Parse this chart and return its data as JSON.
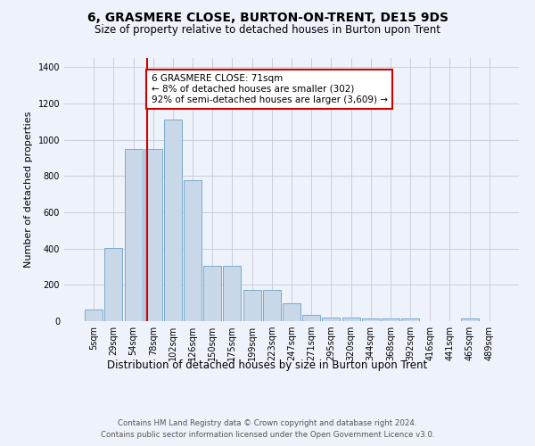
{
  "title": "6, GRASMERE CLOSE, BURTON-ON-TRENT, DE15 9DS",
  "subtitle": "Size of property relative to detached houses in Burton upon Trent",
  "xlabel": "Distribution of detached houses by size in Burton upon Trent",
  "ylabel": "Number of detached properties",
  "bar_labels": [
    "5sqm",
    "29sqm",
    "54sqm",
    "78sqm",
    "102sqm",
    "126sqm",
    "150sqm",
    "175sqm",
    "199sqm",
    "223sqm",
    "247sqm",
    "271sqm",
    "295sqm",
    "320sqm",
    "344sqm",
    "368sqm",
    "392sqm",
    "416sqm",
    "441sqm",
    "465sqm",
    "489sqm"
  ],
  "bar_values": [
    65,
    405,
    950,
    950,
    1110,
    775,
    305,
    305,
    170,
    170,
    100,
    35,
    20,
    20,
    15,
    15,
    13,
    0,
    0,
    13,
    0
  ],
  "bar_color": "#c8d8e8",
  "bar_edge_color": "#7aaacc",
  "grid_color": "#ccccdd",
  "background_color": "#eef2fa",
  "vline_color": "#cc0000",
  "annotation_text": "6 GRASMERE CLOSE: 71sqm\n← 8% of detached houses are smaller (302)\n92% of semi-detached houses are larger (3,609) →",
  "annotation_box_color": "#ffffff",
  "annotation_border_color": "#cc0000",
  "ylim": [
    0,
    1450
  ],
  "yticks": [
    0,
    200,
    400,
    600,
    800,
    1000,
    1200,
    1400
  ],
  "footer1": "Contains HM Land Registry data © Crown copyright and database right 2024.",
  "footer2": "Contains public sector information licensed under the Open Government Licence v3.0."
}
